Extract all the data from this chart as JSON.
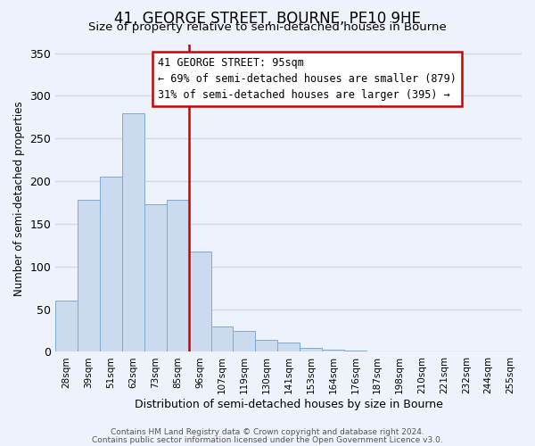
{
  "title": "41, GEORGE STREET, BOURNE, PE10 9HE",
  "subtitle": "Size of property relative to semi-detached houses in Bourne",
  "xlabel": "Distribution of semi-detached houses by size in Bourne",
  "ylabel": "Number of semi-detached properties",
  "categories": [
    "28sqm",
    "39sqm",
    "51sqm",
    "62sqm",
    "73sqm",
    "85sqm",
    "96sqm",
    "107sqm",
    "119sqm",
    "130sqm",
    "141sqm",
    "153sqm",
    "164sqm",
    "176sqm",
    "187sqm",
    "198sqm",
    "210sqm",
    "221sqm",
    "232sqm",
    "244sqm",
    "255sqm"
  ],
  "values": [
    60,
    178,
    205,
    280,
    173,
    178,
    118,
    30,
    24,
    14,
    11,
    5,
    3,
    2,
    1,
    0,
    0,
    0,
    0,
    1,
    1
  ],
  "bar_color": "#ccdaf0",
  "bar_edge_color": "#7eaad4",
  "highlight_line_index": 6,
  "highlight_line_color": "#cc0000",
  "annotation_title": "41 GEORGE STREET: 95sqm",
  "annotation_line1": "← 69% of semi-detached houses are smaller (879)",
  "annotation_line2": "31% of semi-detached houses are larger (395) →",
  "annotation_box_color": "#ffffff",
  "annotation_box_edge_color": "#cc0000",
  "ylim": [
    0,
    360
  ],
  "yticks": [
    0,
    50,
    100,
    150,
    200,
    250,
    300,
    350
  ],
  "footer_line1": "Contains HM Land Registry data © Crown copyright and database right 2024.",
  "footer_line2": "Contains public sector information licensed under the Open Government Licence v3.0.",
  "background_color": "#eef2fa",
  "grid_color": "#d0d8e8",
  "title_fontsize": 12,
  "subtitle_fontsize": 9.5
}
